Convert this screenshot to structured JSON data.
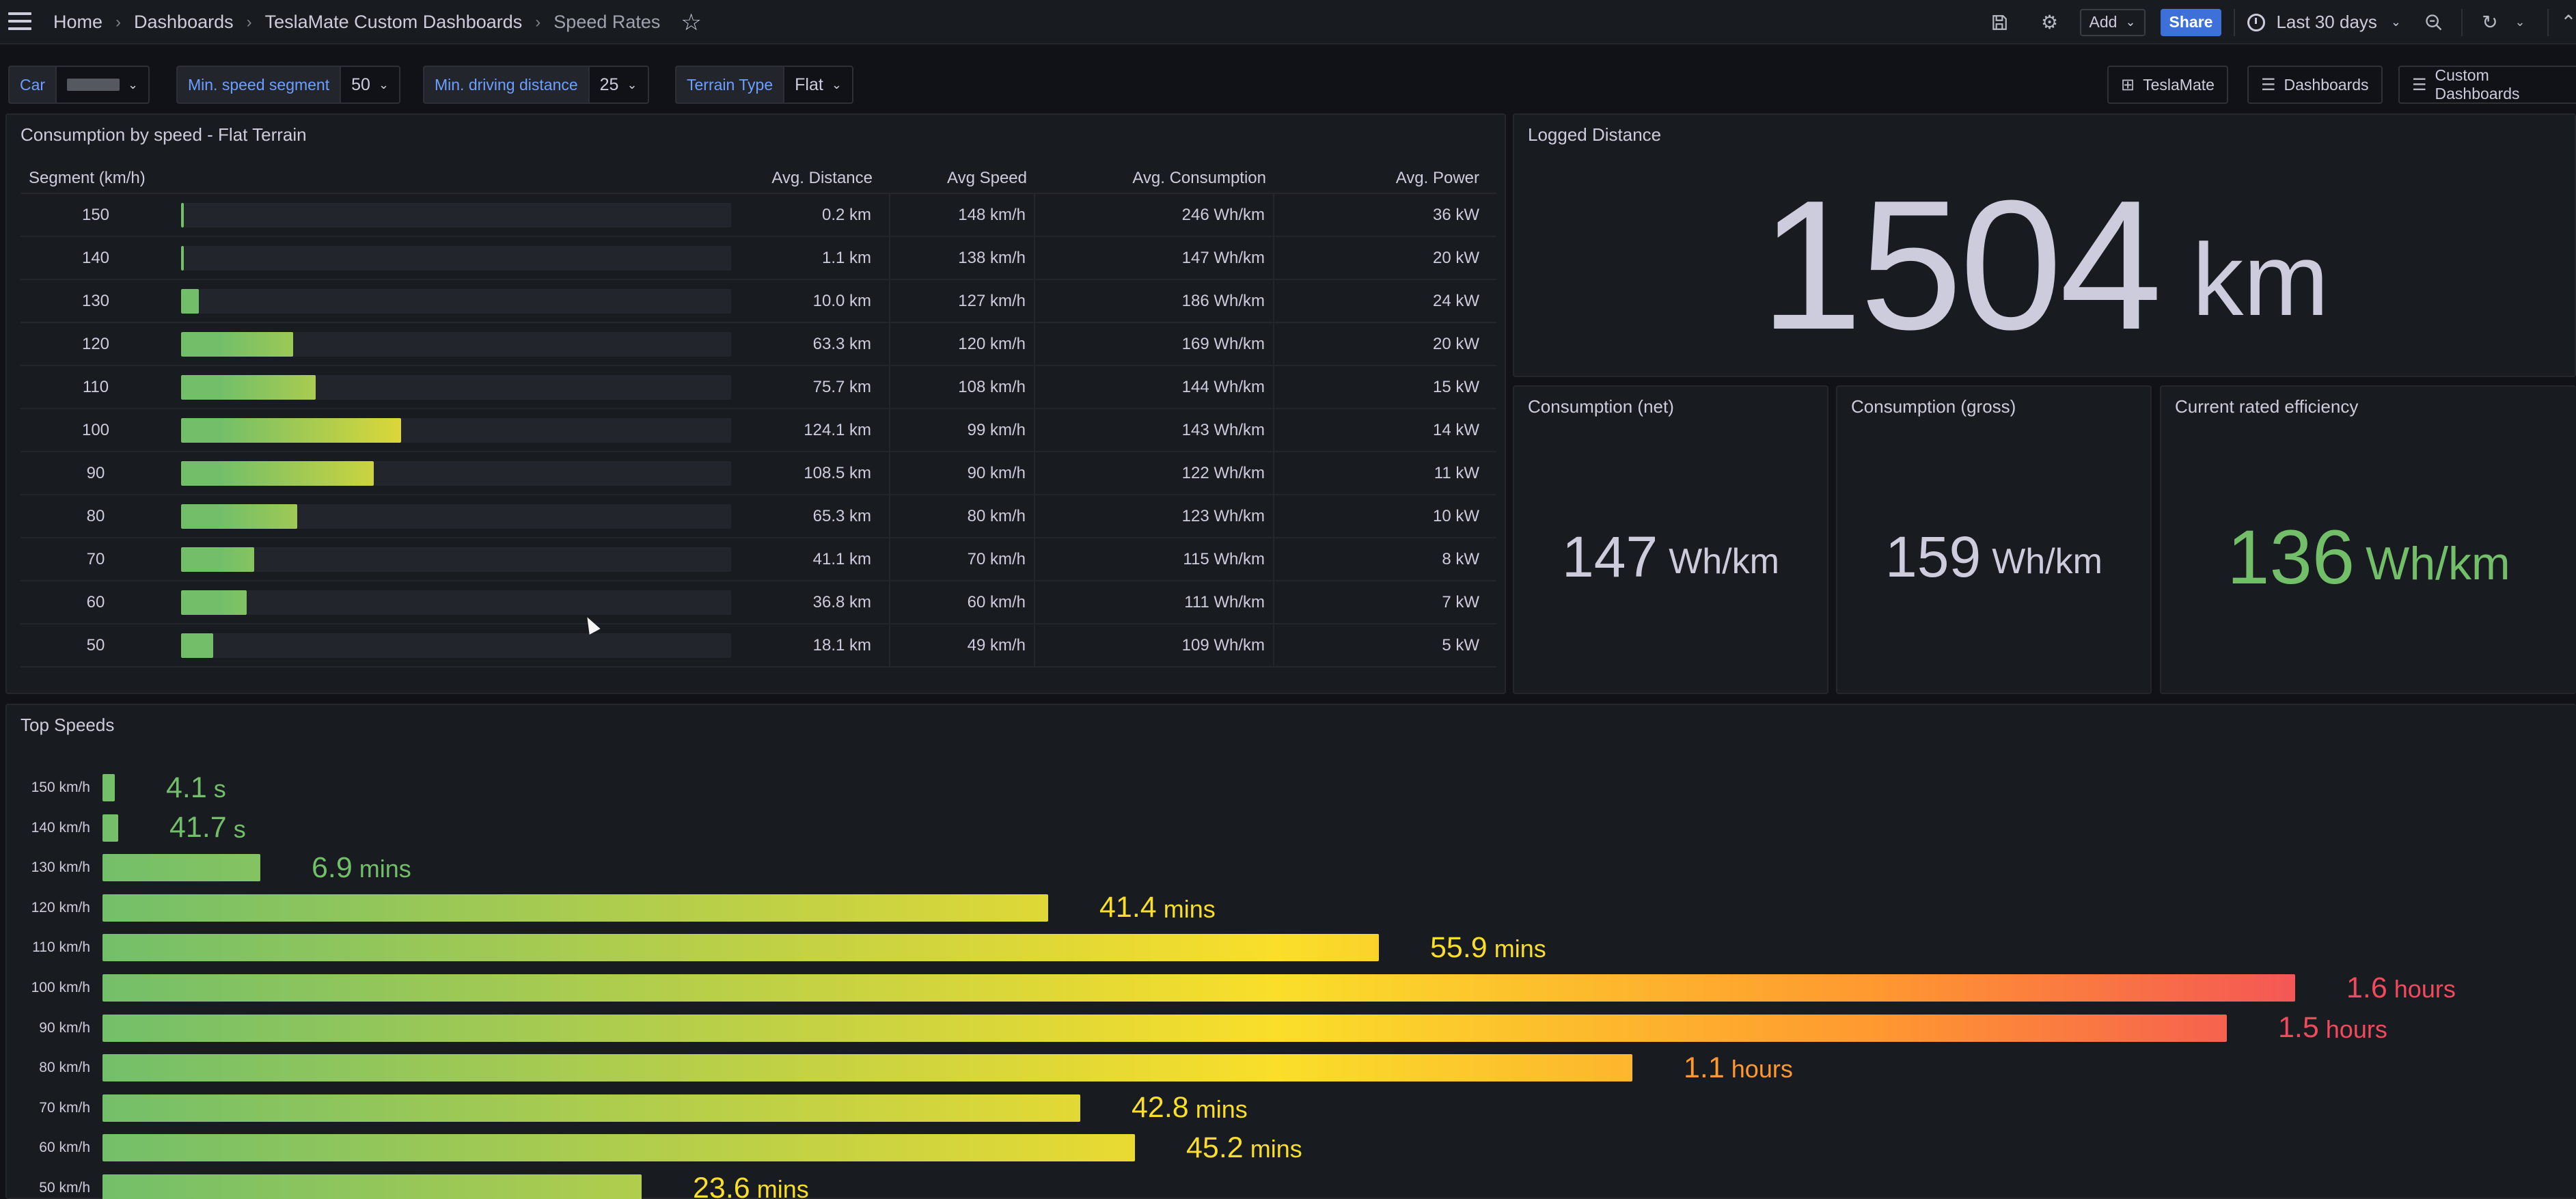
{
  "header": {
    "breadcrumbs": [
      "Home",
      "Dashboards",
      "TeslaMate Custom Dashboards",
      "Speed Rates"
    ],
    "add_label": "Add",
    "share_label": "Share",
    "time_range": "Last 30 days"
  },
  "variables": {
    "car": {
      "label": "Car",
      "value": ""
    },
    "min_speed_segment": {
      "label": "Min. speed segment",
      "value": "50"
    },
    "min_driving_distance": {
      "label": "Min. driving distance",
      "value": "25"
    },
    "terrain_type": {
      "label": "Terrain Type",
      "value": "Flat"
    }
  },
  "links": [
    "TeslaMate",
    "Dashboards",
    "Custom Dashboards"
  ],
  "consumption_panel": {
    "title": "Consumption by speed - Flat Terrain",
    "columns": [
      "Segment (km/h)",
      "Avg. Distance",
      "Avg Speed",
      "Avg. Consumption",
      "Avg. Power"
    ],
    "rows": [
      {
        "segment": "150",
        "distance_value": 0.2,
        "distance": "0.2 km",
        "speed": "148 km/h",
        "consumption": "246 Wh/km",
        "power": "36 kW"
      },
      {
        "segment": "140",
        "distance_value": 1.1,
        "distance": "1.1 km",
        "speed": "138 km/h",
        "consumption": "147 Wh/km",
        "power": "20 kW"
      },
      {
        "segment": "130",
        "distance_value": 10.0,
        "distance": "10.0 km",
        "speed": "127 km/h",
        "consumption": "186 Wh/km",
        "power": "24 kW"
      },
      {
        "segment": "120",
        "distance_value": 63.3,
        "distance": "63.3 km",
        "speed": "120 km/h",
        "consumption": "169 Wh/km",
        "power": "20 kW"
      },
      {
        "segment": "110",
        "distance_value": 75.7,
        "distance": "75.7 km",
        "speed": "108 km/h",
        "consumption": "144 Wh/km",
        "power": "15 kW"
      },
      {
        "segment": "100",
        "distance_value": 124.1,
        "distance": "124.1 km",
        "speed": "99 km/h",
        "consumption": "143 Wh/km",
        "power": "14 kW"
      },
      {
        "segment": "90",
        "distance_value": 108.5,
        "distance": "108.5 km",
        "speed": "90 km/h",
        "consumption": "122 Wh/km",
        "power": "11 kW"
      },
      {
        "segment": "80",
        "distance_value": 65.3,
        "distance": "65.3 km",
        "speed": "80 km/h",
        "consumption": "123 Wh/km",
        "power": "10 kW"
      },
      {
        "segment": "70",
        "distance_value": 41.1,
        "distance": "41.1 km",
        "speed": "70 km/h",
        "consumption": "115 Wh/km",
        "power": "8 kW"
      },
      {
        "segment": "60",
        "distance_value": 36.8,
        "distance": "36.8 km",
        "speed": "60 km/h",
        "consumption": "111 Wh/km",
        "power": "7 kW"
      },
      {
        "segment": "50",
        "distance_value": 18.1,
        "distance": "18.1 km",
        "speed": "49 km/h",
        "consumption": "109 Wh/km",
        "power": "5 kW"
      }
    ]
  },
  "logged_distance": {
    "title": "Logged Distance",
    "value": "1504",
    "unit": "km"
  },
  "consumption_net": {
    "title": "Consumption (net)",
    "value": "147",
    "unit": "Wh/km"
  },
  "consumption_gross": {
    "title": "Consumption (gross)",
    "value": "159",
    "unit": "Wh/km"
  },
  "rated_efficiency": {
    "title": "Current rated efficiency",
    "value": "136",
    "unit": "Wh/km"
  },
  "top_speeds": {
    "title": "Top Speeds",
    "rows": [
      {
        "label": "150 km/h",
        "value": "4.1",
        "unit": "s",
        "minutes": 0.068
      },
      {
        "label": "140 km/h",
        "value": "41.7",
        "unit": "s",
        "minutes": 0.695
      },
      {
        "label": "130 km/h",
        "value": "6.9",
        "unit": "mins",
        "minutes": 6.9
      },
      {
        "label": "120 km/h",
        "value": "41.4",
        "unit": "mins",
        "minutes": 41.4
      },
      {
        "label": "110 km/h",
        "value": "55.9",
        "unit": "mins",
        "minutes": 55.9
      },
      {
        "label": "100 km/h",
        "value": "1.6",
        "unit": "hours",
        "minutes": 96
      },
      {
        "label": "90 km/h",
        "value": "1.5",
        "unit": "hours",
        "minutes": 93
      },
      {
        "label": "80 km/h",
        "value": "1.1",
        "unit": "hours",
        "minutes": 67
      },
      {
        "label": "70 km/h",
        "value": "42.8",
        "unit": "mins",
        "minutes": 42.8
      },
      {
        "label": "60 km/h",
        "value": "45.2",
        "unit": "mins",
        "minutes": 45.2
      },
      {
        "label": "50 km/h",
        "value": "23.6",
        "unit": "mins",
        "minutes": 23.6
      }
    ]
  },
  "colors": {
    "green": "#73bf69",
    "yellow": "#fade2a",
    "orange": "#ff9830",
    "red": "#f2495c"
  }
}
